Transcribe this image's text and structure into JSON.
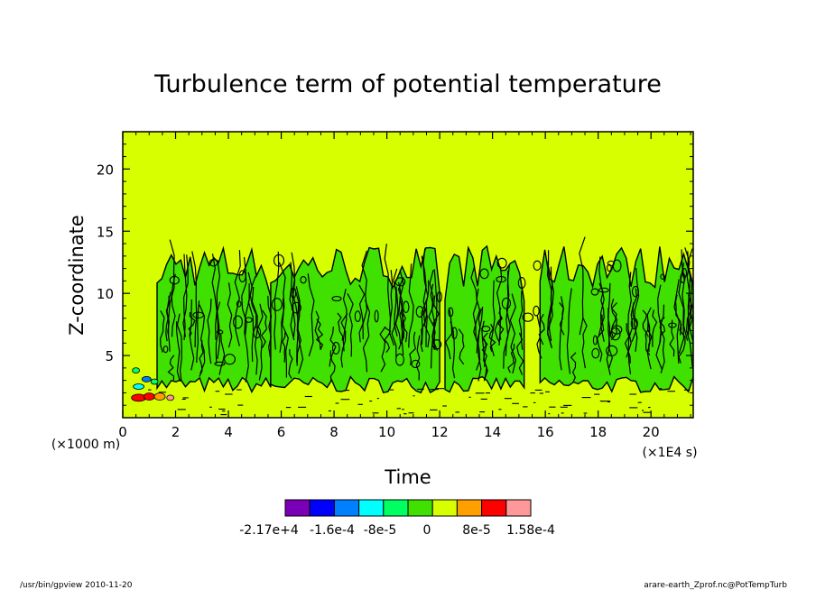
{
  "chart_data": {
    "type": "heatmap",
    "title": "Turbulence term of potential temperature",
    "xlabel": "Time",
    "ylabel": "Z-coordinate",
    "x_unit": "(×1E4 s)",
    "y_unit": "(×1000 m)",
    "xlim": [
      0,
      21.6
    ],
    "ylim": [
      0,
      23
    ],
    "x_ticks": [
      0,
      2,
      4,
      6,
      8,
      10,
      12,
      14,
      16,
      18,
      20
    ],
    "y_ticks": [
      5,
      10,
      15,
      20
    ],
    "colorbar": {
      "colors": [
        "#7a00b8",
        "#0000ff",
        "#0080ff",
        "#00ffff",
        "#00ff60",
        "#40e000",
        "#d8ff00",
        "#ffa000",
        "#ff0000",
        "#ff9898"
      ],
      "labels": [
        "-2.17e+4",
        "-1.6e-4",
        "-8e-5",
        "0",
        "8e-5",
        "1.58e-4"
      ]
    },
    "background_color": "#d8ff00",
    "structure_color": "#40e000"
  },
  "footer": {
    "left": "/usr/bin/gpview   2010-11-20",
    "right": "arare-earth_Zprof.nc@PotTempTurb"
  }
}
